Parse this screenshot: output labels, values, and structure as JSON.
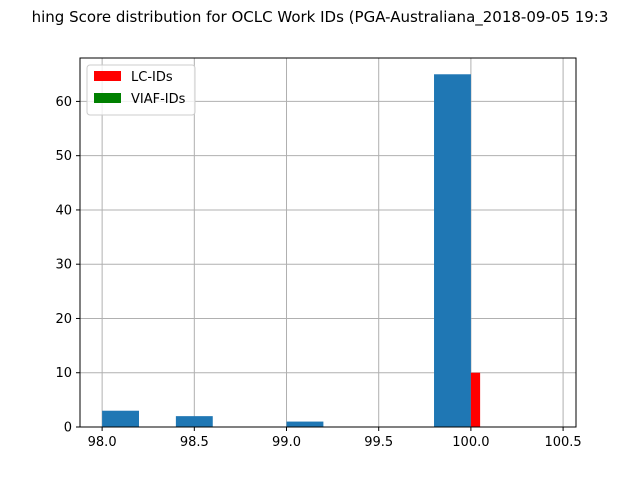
{
  "chart_data": {
    "type": "bar",
    "title": "hing Score distribution for OCLC Work IDs (PGA-Australiana_2018-09-05 19:3",
    "xlabel": "",
    "ylabel": "",
    "xlim": [
      97.88,
      100.57
    ],
    "ylim": [
      0,
      68
    ],
    "x_ticks": [
      "98.0",
      "98.5",
      "99.0",
      "99.5",
      "100.0",
      "100.5"
    ],
    "x_tick_values": [
      98.0,
      98.5,
      99.0,
      99.5,
      100.0,
      100.5
    ],
    "y_ticks": [
      "0",
      "10",
      "20",
      "30",
      "40",
      "50",
      "60"
    ],
    "y_tick_values": [
      0,
      10,
      20,
      30,
      40,
      50,
      60
    ],
    "grid": true,
    "legend_position": "top-left",
    "series": [
      {
        "name": "",
        "color": "#1f77b4",
        "bars": [
          {
            "x0": 98.0,
            "x1": 98.2,
            "value": 3
          },
          {
            "x0": 98.4,
            "x1": 98.6,
            "value": 2
          },
          {
            "x0": 99.0,
            "x1": 99.2,
            "value": 1
          },
          {
            "x0": 99.8,
            "x1": 100.0,
            "value": 65
          }
        ]
      },
      {
        "name": "LC-IDs",
        "color": "#ff0000",
        "bars": [
          {
            "x0": 100.0,
            "x1": 100.05,
            "value": 10
          }
        ]
      },
      {
        "name": "VIAF-IDs",
        "color": "#008000",
        "bars": []
      }
    ]
  }
}
